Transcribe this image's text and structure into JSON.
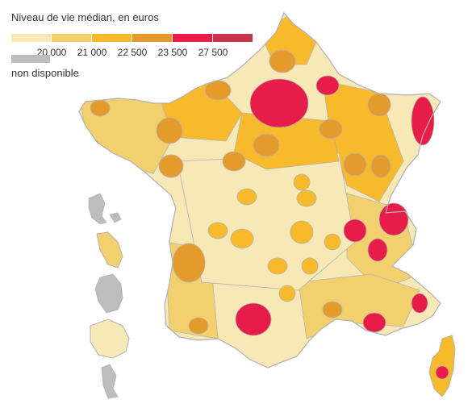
{
  "legend": {
    "title": "Niveau de vie médian, en euros",
    "classes": [
      {
        "color": "#f7e8b6"
      },
      {
        "color": "#f3d06e"
      },
      {
        "color": "#f8b92a"
      },
      {
        "color": "#e59a2c"
      },
      {
        "color": "#e81c48"
      },
      {
        "color": "#c7344f"
      }
    ],
    "thresholds": [
      "20 000",
      "21 000",
      "22 500",
      "23 500",
      "27 500"
    ],
    "not_available": {
      "label": "non disponible",
      "color": "#bdbdbd"
    }
  },
  "map": {
    "background_color": "#f7e8b6",
    "border_color": "#b3b3b3"
  }
}
